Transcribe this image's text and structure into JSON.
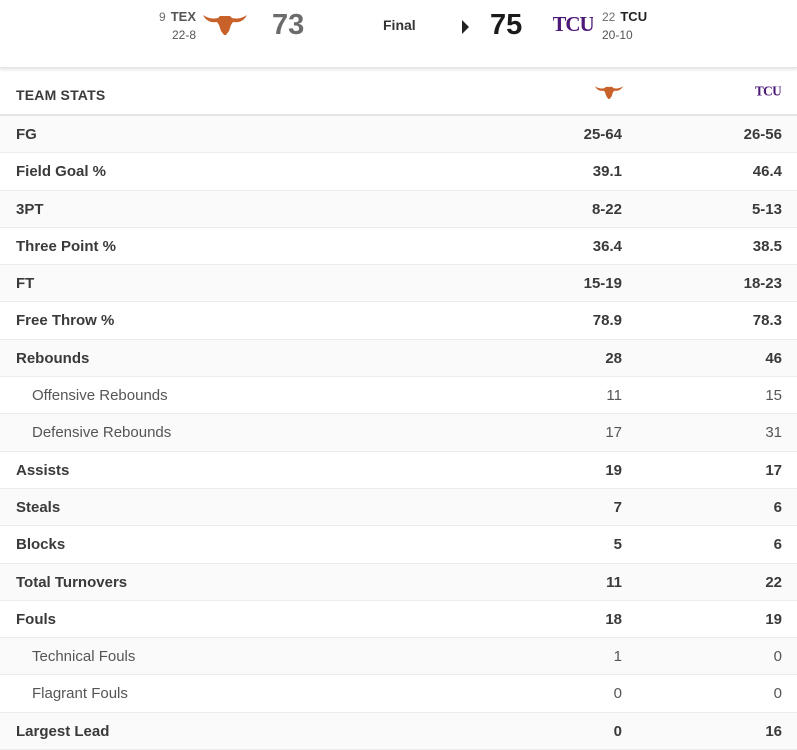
{
  "scoreboard": {
    "away": {
      "rank": "9",
      "abbr": "TEX",
      "record": "22-8",
      "score": "73",
      "logo": "longhorn-icon",
      "color": "#c8612a"
    },
    "home": {
      "rank": "22",
      "abbr": "TCU",
      "record": "20-10",
      "score": "75",
      "logo": "tcu-logo-icon",
      "color": "#4d1979"
    },
    "status": "Final",
    "winner": "home"
  },
  "table": {
    "title": "TEAM STATS",
    "rows": [
      {
        "label": "FG",
        "away": "25-64",
        "home": "26-56",
        "sub": false
      },
      {
        "label": "Field Goal %",
        "away": "39.1",
        "home": "46.4",
        "sub": false
      },
      {
        "label": "3PT",
        "away": "8-22",
        "home": "5-13",
        "sub": false
      },
      {
        "label": "Three Point %",
        "away": "36.4",
        "home": "38.5",
        "sub": false
      },
      {
        "label": "FT",
        "away": "15-19",
        "home": "18-23",
        "sub": false
      },
      {
        "label": "Free Throw %",
        "away": "78.9",
        "home": "78.3",
        "sub": false
      },
      {
        "label": "Rebounds",
        "away": "28",
        "home": "46",
        "sub": false
      },
      {
        "label": "Offensive Rebounds",
        "away": "11",
        "home": "15",
        "sub": true
      },
      {
        "label": "Defensive Rebounds",
        "away": "17",
        "home": "31",
        "sub": true
      },
      {
        "label": "Assists",
        "away": "19",
        "home": "17",
        "sub": false
      },
      {
        "label": "Steals",
        "away": "7",
        "home": "6",
        "sub": false
      },
      {
        "label": "Blocks",
        "away": "5",
        "home": "6",
        "sub": false
      },
      {
        "label": "Total Turnovers",
        "away": "11",
        "home": "22",
        "sub": false
      },
      {
        "label": "Fouls",
        "away": "18",
        "home": "19",
        "sub": false
      },
      {
        "label": "Technical Fouls",
        "away": "1",
        "home": "0",
        "sub": true
      },
      {
        "label": "Flagrant Fouls",
        "away": "0",
        "home": "0",
        "sub": true
      },
      {
        "label": "Largest Lead",
        "away": "0",
        "home": "16",
        "sub": false
      }
    ]
  }
}
